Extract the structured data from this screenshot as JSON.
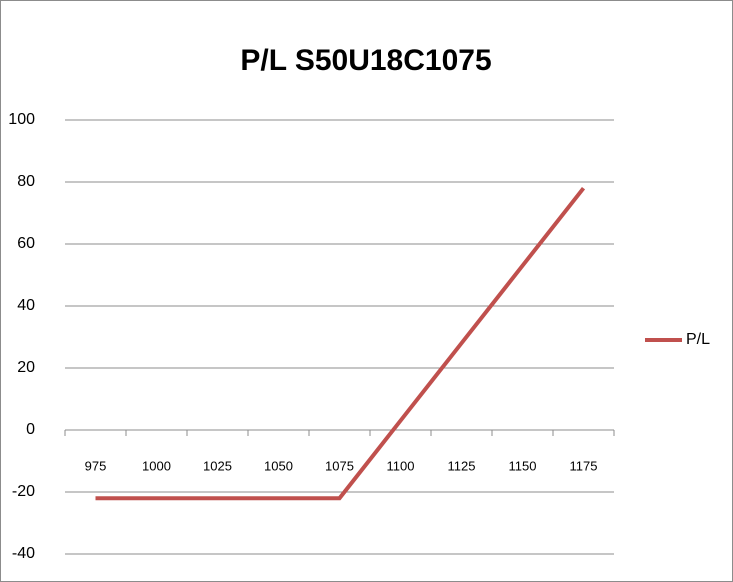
{
  "chart_data": {
    "type": "line",
    "title": "P/L S50U18C1075",
    "categories": [
      "975",
      "1000",
      "1025",
      "1050",
      "1075",
      "1100",
      "1125",
      "1150",
      "1175"
    ],
    "series": [
      {
        "name": "P/L",
        "color": "#c0504d",
        "values": [
          -22,
          -22,
          -22,
          -22,
          -22,
          3,
          28,
          53,
          78
        ]
      }
    ],
    "ylim": [
      -40,
      100
    ],
    "yticks": [
      -40,
      -20,
      0,
      20,
      40,
      60,
      80,
      100
    ],
    "grid": true,
    "legend": "right"
  }
}
